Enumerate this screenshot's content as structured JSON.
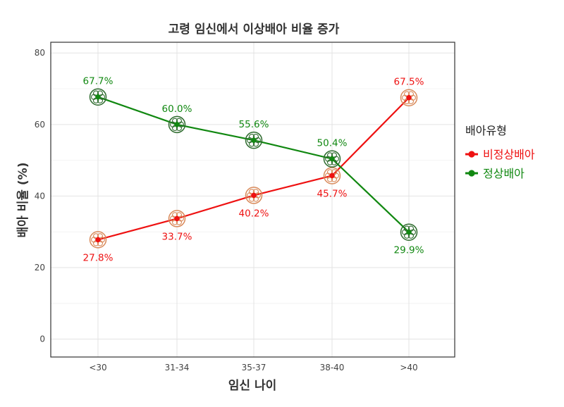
{
  "chart_data": {
    "type": "line",
    "title": "고령 임신에서 이상배아 비율 증가",
    "xlabel": "임신 나이",
    "ylabel": "배아 비율 (%)",
    "categories": [
      "<30",
      "31-34",
      "35-37",
      "38-40",
      ">40"
    ],
    "ylim": [
      -5,
      83
    ],
    "yticks": [
      0,
      20,
      40,
      60,
      80
    ],
    "grid": true,
    "legend": {
      "title": "배아유형",
      "position": "right"
    },
    "series": [
      {
        "name": "비정상배아",
        "color": "#ee1111",
        "marker_color": "#d98a5a",
        "values": [
          27.8,
          33.7,
          40.2,
          45.7,
          67.5
        ],
        "labels": [
          "27.8%",
          "33.7%",
          "40.2%",
          "45.7%",
          "67.5%"
        ],
        "label_side": [
          "below",
          "below",
          "below",
          "below",
          "above"
        ]
      },
      {
        "name": "정상배아",
        "color": "#118811",
        "marker_color": "#2e6b2e",
        "values": [
          67.7,
          60.0,
          55.6,
          50.4,
          29.9
        ],
        "labels": [
          "67.7%",
          "60.0%",
          "55.6%",
          "50.4%",
          "29.9%"
        ],
        "label_side": [
          "above",
          "above",
          "above",
          "above",
          "below"
        ]
      }
    ]
  }
}
